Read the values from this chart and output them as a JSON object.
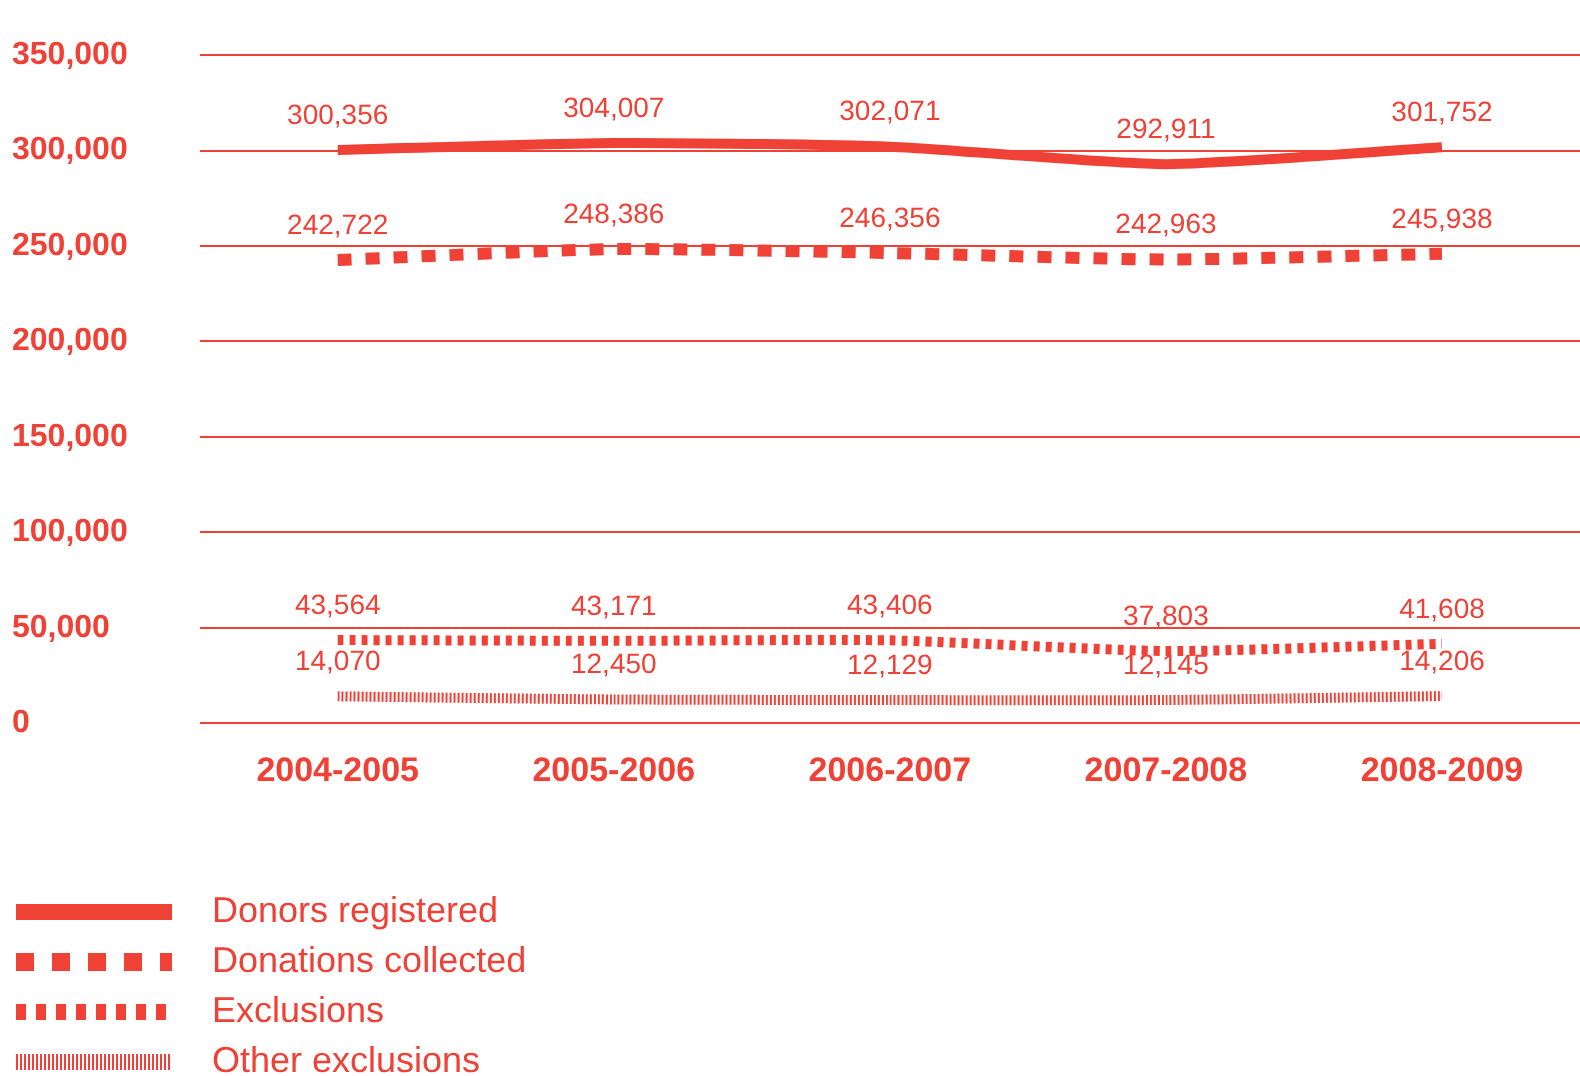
{
  "chart_data": {
    "type": "line",
    "categories": [
      "2004-2005",
      "2005-2006",
      "2006-2007",
      "2007-2008",
      "2008-2009"
    ],
    "series": [
      {
        "name": "Donors registered",
        "color": "#ef4136",
        "line_style": "solid",
        "values": [
          300356,
          304007,
          302071,
          292911,
          301752
        ],
        "value_labels": [
          "300,356",
          "304,007",
          "302,071",
          "292,911",
          "301,752"
        ]
      },
      {
        "name": "Donations collected",
        "color": "#ef4136",
        "line_style": "dashed",
        "values": [
          242722,
          248386,
          246356,
          242963,
          245938
        ],
        "value_labels": [
          "242,722",
          "248,386",
          "246,356",
          "242,963",
          "245,938"
        ]
      },
      {
        "name": "Exclusions",
        "color": "#ef4136",
        "line_style": "dashed",
        "values": [
          43564,
          43171,
          43406,
          37803,
          41608
        ],
        "value_labels": [
          "43,564",
          "43,171",
          "43,406",
          "37,803",
          "41,608"
        ]
      },
      {
        "name": "Other exclusions",
        "color": "#ef4136",
        "line_style": "dotted",
        "values": [
          14070,
          12450,
          12129,
          12145,
          14206
        ],
        "value_labels": [
          "14,070",
          "12,450",
          "12,129",
          "12,145",
          "14,206"
        ]
      }
    ],
    "ylim": [
      0,
      350000
    ],
    "yticks": [
      {
        "value": 0,
        "label": "0"
      },
      {
        "value": 50000,
        "label": "50,000"
      },
      {
        "value": 100000,
        "label": "100,000"
      },
      {
        "value": 150000,
        "label": "150,000"
      },
      {
        "value": 200000,
        "label": "200,000"
      },
      {
        "value": 250000,
        "label": "250,000"
      },
      {
        "value": 300000,
        "label": "300,000"
      },
      {
        "value": 350000,
        "label": "350,000"
      }
    ],
    "grid": "y",
    "legend": "bottom left",
    "marker": "none"
  }
}
